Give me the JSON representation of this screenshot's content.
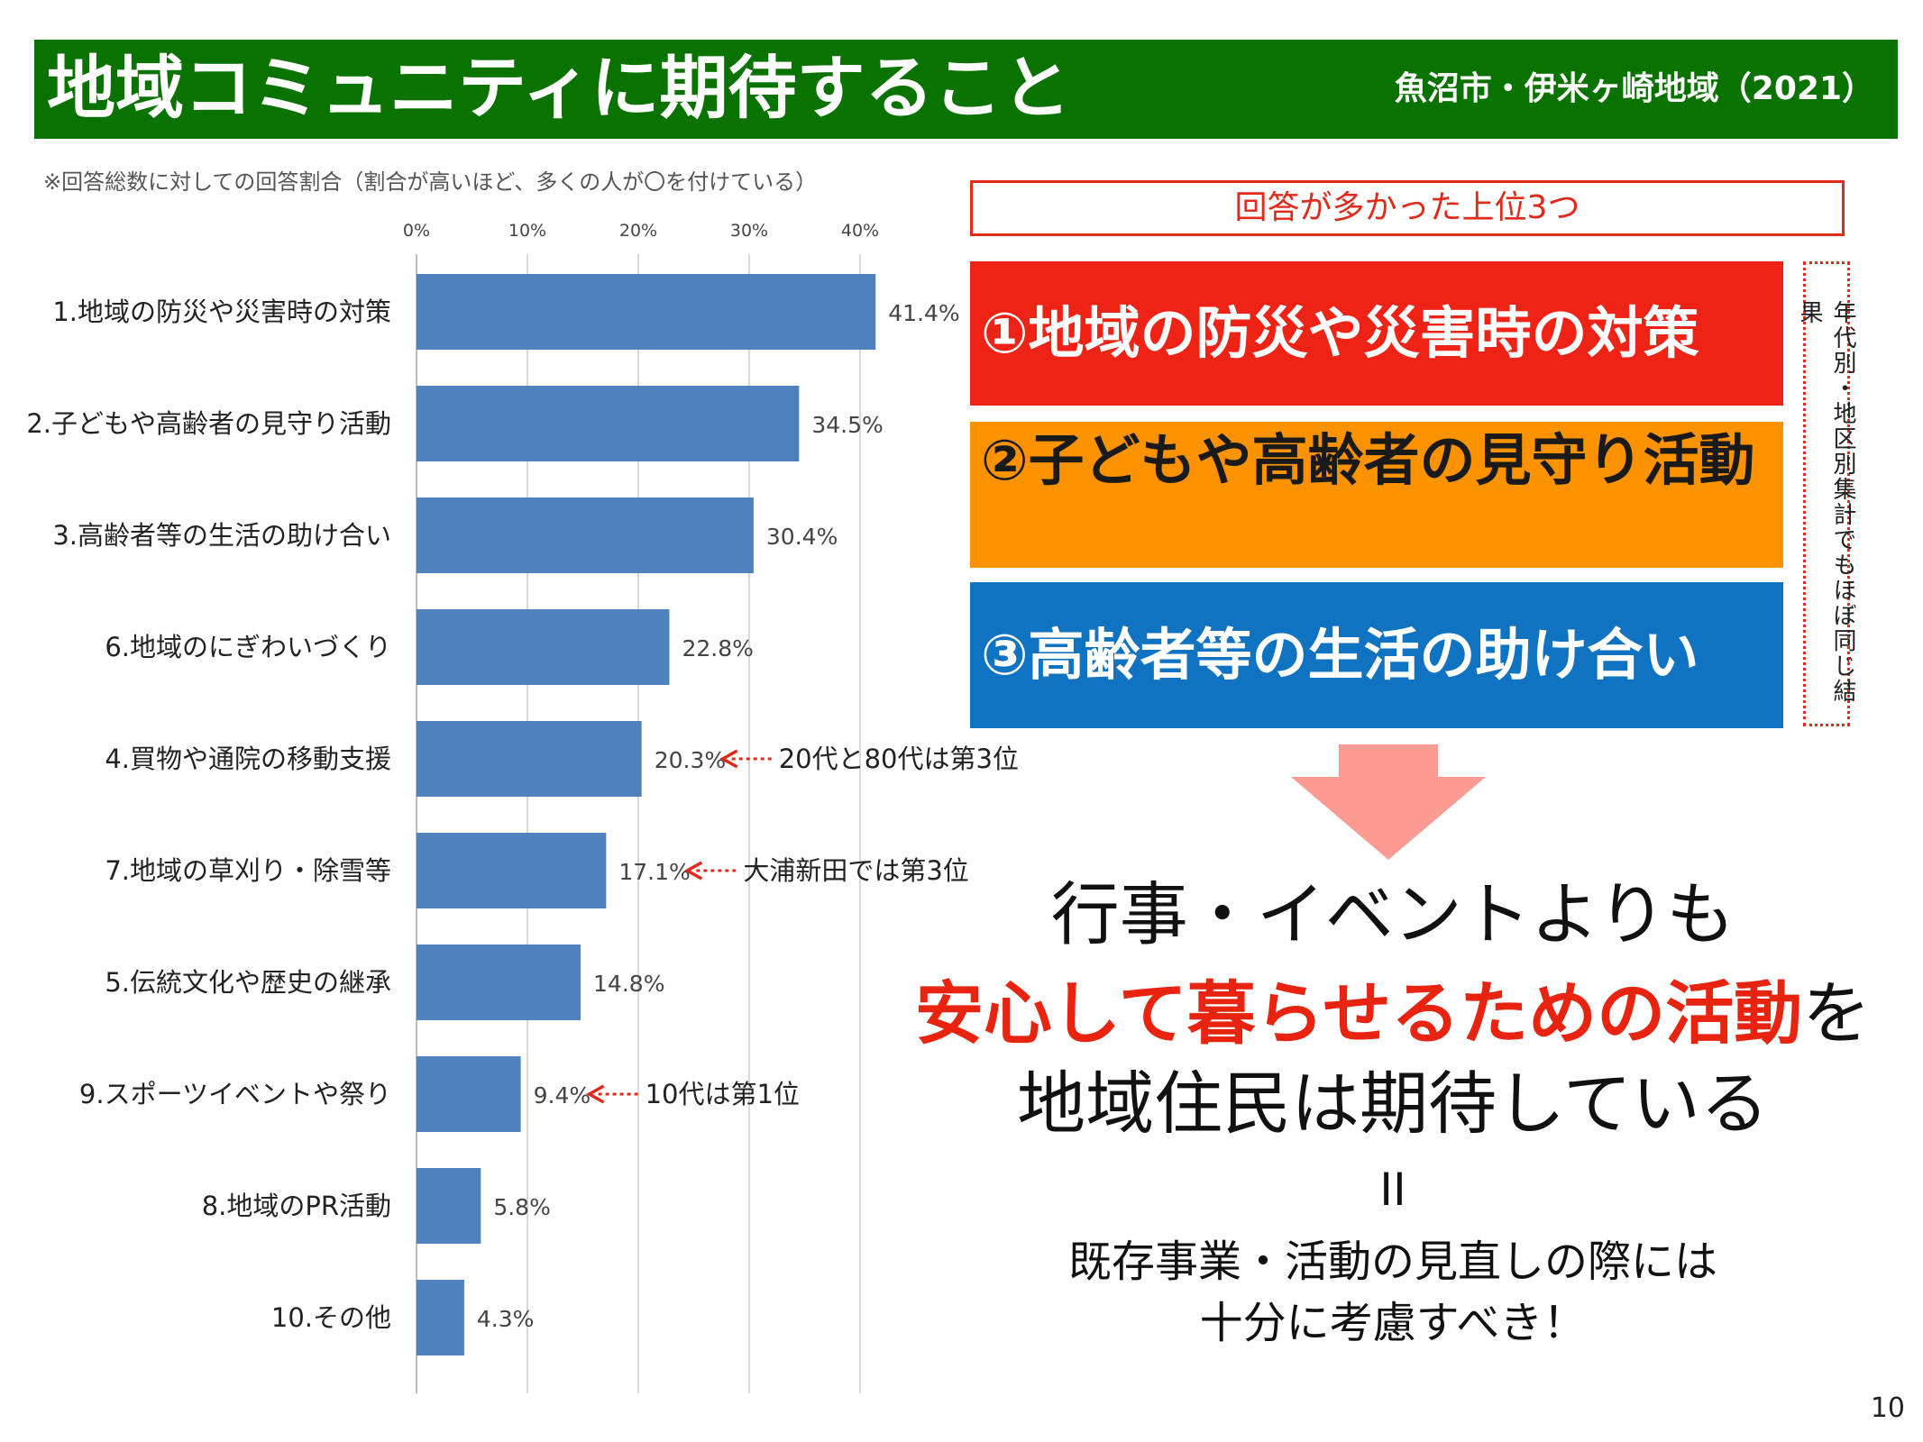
{
  "header": {
    "title": "地域コミュニティに期待すること",
    "subtitle": "魚沼市・伊米ヶ崎地域（2021）"
  },
  "note": "※回答総数に対しての回答割合（割合が高いほど、多くの人が〇を付けている）",
  "chart_data": {
    "type": "bar",
    "orientation": "horizontal",
    "categories": [
      "1.地域の防災や災害時の対策",
      "2.子どもや高齢者の見守り活動",
      "3.高齢者等の生活の助け合い",
      "6.地域のにぎわいづくり",
      "4.買物や通院の移動支援",
      "7.地域の草刈り・除雪等",
      "5.伝統文化や歴史の継承",
      "9.スポーツイベントや祭り",
      "8.地域のPR活動",
      "10.その他"
    ],
    "values": [
      41.4,
      34.5,
      30.4,
      22.8,
      20.3,
      17.1,
      14.8,
      9.4,
      5.8,
      4.3
    ],
    "value_labels": [
      "41.4%",
      "34.5%",
      "30.4%",
      "22.8%",
      "20.3%",
      "17.1%",
      "14.8%",
      "9.4%",
      "5.8%",
      "4.3%"
    ],
    "x_ticks": [
      "0%",
      "10%",
      "20%",
      "30%",
      "40%"
    ],
    "xlim": [
      0,
      44
    ],
    "bar_color": "#4f81bd",
    "grid": true,
    "annotations": [
      {
        "category_index": 4,
        "text": "20代と80代は第3位"
      },
      {
        "category_index": 5,
        "text": "大浦新田では第3位"
      },
      {
        "category_index": 7,
        "text": "10代は第1位"
      }
    ],
    "annotation_arrow_color": "#e02a1b"
  },
  "top3": {
    "header": "回答が多かった上位3つ",
    "items": [
      "①地域の防災や災害時の対策",
      "②子どもや高齢者の見守り活動",
      "③高齢者等の生活の助け合い"
    ],
    "side_note": "年代別・地区別集計でもほぼ同じ結果"
  },
  "conclusion": {
    "line1": "行事・イベントよりも",
    "line2_highlight": "安心して暮らせるための活動",
    "line2_tail": "を",
    "line3": "地域住民は期待している",
    "equals": "II",
    "line4": "既存事業・活動の見直しの際には",
    "line5": "十分に考慮すべき！"
  },
  "page_number": "10",
  "colors": {
    "title_bg": "#0a7300",
    "rank1_bg": "#ef2216",
    "rank2_bg": "#fb9300",
    "rank3_bg": "#0f73c2",
    "arrow": "#fb9b94",
    "highlight_text": "#e8230f"
  }
}
